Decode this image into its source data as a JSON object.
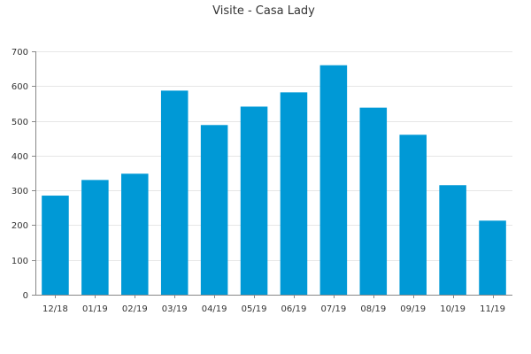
{
  "chart_data": {
    "type": "bar",
    "title": "Visite - Casa Lady",
    "xlabel": "",
    "ylabel": "",
    "categories": [
      "12/18",
      "01/19",
      "02/19",
      "03/19",
      "04/19",
      "05/19",
      "06/19",
      "07/19",
      "08/19",
      "09/19",
      "10/19",
      "11/19"
    ],
    "values": [
      285,
      330,
      348,
      587,
      488,
      541,
      582,
      660,
      538,
      460,
      315,
      213
    ],
    "ylim": [
      0,
      700
    ],
    "yticks": [
      0,
      100,
      200,
      300,
      400,
      500,
      600,
      700
    ],
    "grid": true,
    "legend": "none",
    "bar_color": "#0099d6"
  }
}
